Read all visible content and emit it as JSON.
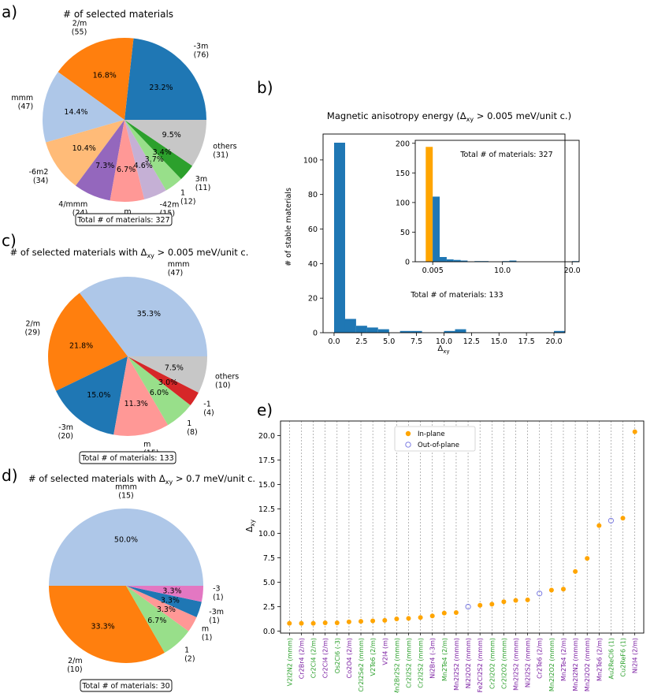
{
  "panels": {
    "a": "a)",
    "b": "b)",
    "c": "c)",
    "d": "d)",
    "e": "e)"
  },
  "colors": {
    "blue": "#1f77b4",
    "orange": "#ff7f0e",
    "lightblue": "#aec7e8",
    "peach": "#ffbb78",
    "purple": "#9467bd",
    "pink": "#ff9896",
    "lilac": "#c5b0d5",
    "lightgreen": "#98df8a",
    "green": "#2ca02c",
    "gray": "#c7c7c7",
    "red": "#d62728",
    "magenta": "#e377c2",
    "label_green": "#2ca02c",
    "label_purple": "#7b1fa2",
    "oop_marker": "#6f6fe0"
  },
  "chart_data": [
    {
      "id": "a",
      "type": "pie",
      "title": "# of selected materials",
      "total_label": "Total # of materials: 327",
      "slices": [
        {
          "name": "-3m",
          "count": "(76)",
          "pct": "23.2%",
          "value": 76,
          "color": "#1f77b4"
        },
        {
          "name": "2/m",
          "count": "(55)",
          "pct": "16.8%",
          "value": 55,
          "color": "#ff7f0e"
        },
        {
          "name": "mmm",
          "count": "(47)",
          "pct": "14.4%",
          "value": 47,
          "color": "#aec7e8"
        },
        {
          "name": "-6m2",
          "count": "(34)",
          "pct": "10.4%",
          "value": 34,
          "color": "#ffbb78"
        },
        {
          "name": "4/mmm",
          "count": "(24)",
          "pct": "7.3%",
          "value": 24,
          "color": "#9467bd"
        },
        {
          "name": "m",
          "count": "(22)",
          "pct": "6.7%",
          "value": 22,
          "color": "#ff9896"
        },
        {
          "name": "-42m",
          "count": "(15)",
          "pct": "4.6%",
          "value": 15,
          "color": "#c5b0d5"
        },
        {
          "name": "1",
          "count": "(12)",
          "pct": "3.7%",
          "value": 12,
          "color": "#98df8a"
        },
        {
          "name": "3m",
          "count": "(11)",
          "pct": "3.4%",
          "value": 11,
          "color": "#2ca02c"
        },
        {
          "name": "others",
          "count": "(31)",
          "pct": "9.5%",
          "value": 31,
          "color": "#c7c7c7"
        }
      ]
    },
    {
      "id": "c",
      "type": "pie",
      "title": "# of selected materials with Δxy > 0.005 meV/unit c.",
      "total_label": "Total # of materials: 133",
      "slices": [
        {
          "name": "mmm",
          "count": "(47)",
          "pct": "35.3%",
          "value": 47,
          "color": "#aec7e8"
        },
        {
          "name": "2/m",
          "count": "(29)",
          "pct": "21.8%",
          "value": 29,
          "color": "#ff7f0e"
        },
        {
          "name": "-3m",
          "count": "(20)",
          "pct": "15.0%",
          "value": 20,
          "color": "#1f77b4"
        },
        {
          "name": "m",
          "count": "(15)",
          "pct": "11.3%",
          "value": 15,
          "color": "#ff9896"
        },
        {
          "name": "1",
          "count": "(8)",
          "pct": "6.0%",
          "value": 8,
          "color": "#98df8a"
        },
        {
          "name": "-1",
          "count": "(4)",
          "pct": "3.0%",
          "value": 4,
          "color": "#d62728"
        },
        {
          "name": "others",
          "count": "(10)",
          "pct": "7.5%",
          "value": 10,
          "color": "#c7c7c7"
        }
      ]
    },
    {
      "id": "d",
      "type": "pie",
      "title": "# of selected materials with Δxy > 0.7 meV/unit c.",
      "total_label": "Total # of materials: 30",
      "slices": [
        {
          "name": "mmm",
          "count": "(15)",
          "pct": "50.0%",
          "value": 15,
          "color": "#aec7e8"
        },
        {
          "name": "2/m",
          "count": "(10)",
          "pct": "33.3%",
          "value": 10,
          "color": "#ff7f0e"
        },
        {
          "name": "1",
          "count": "(2)",
          "pct": "6.7%",
          "value": 2,
          "color": "#98df8a"
        },
        {
          "name": "m",
          "count": "(1)",
          "pct": "3.3%",
          "value": 1,
          "color": "#ff9896"
        },
        {
          "name": "-3m",
          "count": "(1)",
          "pct": "3.3%",
          "value": 1,
          "color": "#1f77b4"
        },
        {
          "name": "-3",
          "count": "(1)",
          "pct": "3.3%",
          "value": 1,
          "color": "#e377c2"
        }
      ]
    },
    {
      "id": "b",
      "type": "bar",
      "title": "Magnetic anisotropy energy (Δxy > 0.005 meV/unit c.)",
      "xlabel": "Δxy",
      "ylabel": "# of stable materials",
      "xlim": [
        -1,
        21
      ],
      "ylim": [
        0,
        115
      ],
      "xticks": [
        0.0,
        2.5,
        5.0,
        7.5,
        10.0,
        12.5,
        15.0,
        17.5,
        20.0
      ],
      "xtick_labels": [
        "0.0",
        "2.5",
        "5.0",
        "7.5",
        "10.0",
        "12.5",
        "15.0",
        "17.5",
        "20.0"
      ],
      "yticks": [
        0,
        20,
        40,
        60,
        80,
        100
      ],
      "bin_width": 1.0,
      "bins": [
        0,
        1,
        2,
        3,
        4,
        5,
        6,
        7,
        8,
        9,
        10,
        11,
        12,
        13,
        14,
        15,
        16,
        17,
        18,
        19,
        20
      ],
      "values": [
        110,
        8,
        4,
        3,
        2,
        0,
        1,
        1,
        0,
        0,
        1,
        2,
        0,
        0,
        0,
        0,
        0,
        0,
        0,
        0,
        1
      ],
      "note": "Total # of materials: 133",
      "inset": {
        "xlim": [
          -2.5,
          21
        ],
        "ylim": [
          0,
          205
        ],
        "xticks": [
          0.005,
          10.0,
          20.0
        ],
        "xtick_labels": [
          "0.005",
          "10.0",
          "20.0"
        ],
        "yticks": [
          0,
          50,
          100,
          150,
          200
        ],
        "bin_width": 1.0,
        "highlight_bin": {
          "left": -1,
          "value": 194,
          "color": "#ffa500"
        },
        "bins": [
          0,
          1,
          2,
          3,
          4,
          5,
          6,
          7,
          8,
          9,
          10,
          11,
          12,
          13,
          14,
          15,
          16,
          17,
          18,
          19,
          20
        ],
        "values": [
          110,
          8,
          4,
          3,
          2,
          0,
          1,
          1,
          0,
          0,
          1,
          2,
          0,
          0,
          0,
          0,
          0,
          0,
          0,
          0,
          1
        ],
        "note": "Total # of materials: 327"
      }
    },
    {
      "id": "e",
      "type": "scatter",
      "ylabel": "Δxy",
      "ylim": [
        -0.2,
        21.5
      ],
      "yticks": [
        0.0,
        2.5,
        5.0,
        7.5,
        10.0,
        12.5,
        15.0,
        17.5,
        20.0
      ],
      "ytick_labels": [
        "0.0",
        "2.5",
        "5.0",
        "7.5",
        "10.0",
        "12.5",
        "15.0",
        "17.5",
        "20.0"
      ],
      "legend": [
        {
          "label": "In-plane",
          "marker": "filled"
        },
        {
          "label": "Out-of-plane",
          "marker": "open"
        }
      ],
      "points": [
        {
          "label": "V2I2N2 (mmm)",
          "y": 0.8,
          "type": "in",
          "lc": "green"
        },
        {
          "label": "Cr2Br4 (2/m)",
          "y": 0.8,
          "type": "in",
          "lc": "purple"
        },
        {
          "label": "Cr2Cl4 (2/m)",
          "y": 0.8,
          "type": "in",
          "lc": "green"
        },
        {
          "label": "Cr2Cl4 (2/m)",
          "y": 0.85,
          "type": "in",
          "lc": "purple"
        },
        {
          "label": "Os2Cl6 (-3)",
          "y": 0.85,
          "type": "in",
          "lc": "green"
        },
        {
          "label": "Co2O4 (2/m)",
          "y": 0.95,
          "type": "in",
          "lc": "purple"
        },
        {
          "label": "Cr2I2Se2 (mmm)",
          "y": 1.0,
          "type": "in",
          "lc": "green"
        },
        {
          "label": "V2Te6 (2/m)",
          "y": 1.05,
          "type": "in",
          "lc": "green"
        },
        {
          "label": "V2I4 (m)",
          "y": 1.1,
          "type": "in",
          "lc": "purple"
        },
        {
          "label": "Mn2Br2S2 (mmm)",
          "y": 1.25,
          "type": "in",
          "lc": "green"
        },
        {
          "label": "Cr2I2S2 (mmm)",
          "y": 1.3,
          "type": "in",
          "lc": "green"
        },
        {
          "label": "Cr2I2S2 (mmm)",
          "y": 1.4,
          "type": "in",
          "lc": "green"
        },
        {
          "label": "Ni2Br4 (-3m)",
          "y": 1.55,
          "type": "in",
          "lc": "purple"
        },
        {
          "label": "Mn2Te4 (2/m)",
          "y": 1.85,
          "type": "in",
          "lc": "green"
        },
        {
          "label": "Mn2I2S2 (mmm)",
          "y": 1.9,
          "type": "in",
          "lc": "purple"
        },
        {
          "label": "Ni2I2O2 (mmm)",
          "y": 2.5,
          "type": "out",
          "lc": "purple"
        },
        {
          "label": "Fe2Cl2S2 (mmm)",
          "y": 2.65,
          "type": "in",
          "lc": "purple"
        },
        {
          "label": "Cr2I2O2 (mmm)",
          "y": 2.75,
          "type": "in",
          "lc": "green"
        },
        {
          "label": "Cr2I2O2 (mmm)",
          "y": 3.0,
          "type": "in",
          "lc": "green"
        },
        {
          "label": "Mn2I2S2 (mmm)",
          "y": 3.15,
          "type": "in",
          "lc": "purple"
        },
        {
          "label": "Ni2I2S2 (mmm)",
          "y": 3.2,
          "type": "in",
          "lc": "purple"
        },
        {
          "label": "Cr2Te6 (2/m)",
          "y": 3.85,
          "type": "out",
          "lc": "purple"
        },
        {
          "label": "Mn2I2O2 (mmm)",
          "y": 4.2,
          "type": "in",
          "lc": "green"
        },
        {
          "label": "Mn2Te4 (2/m)",
          "y": 4.3,
          "type": "in",
          "lc": "purple"
        },
        {
          "label": "Mn2I2N2 (mmm)",
          "y": 6.1,
          "type": "in",
          "lc": "purple"
        },
        {
          "label": "Mn2I2O2 (mmm)",
          "y": 7.45,
          "type": "in",
          "lc": "purple"
        },
        {
          "label": "Mn2Te6 (2/m)",
          "y": 10.8,
          "type": "in",
          "lc": "purple"
        },
        {
          "label": "Au2ReCl6 (1)",
          "y": 11.3,
          "type": "out",
          "lc": "green"
        },
        {
          "label": "Cu2ReF6 (1)",
          "y": 11.55,
          "type": "in",
          "lc": "green"
        },
        {
          "label": "Ni2I4 (2/m)",
          "y": 20.4,
          "type": "in",
          "lc": "purple"
        }
      ]
    }
  ]
}
